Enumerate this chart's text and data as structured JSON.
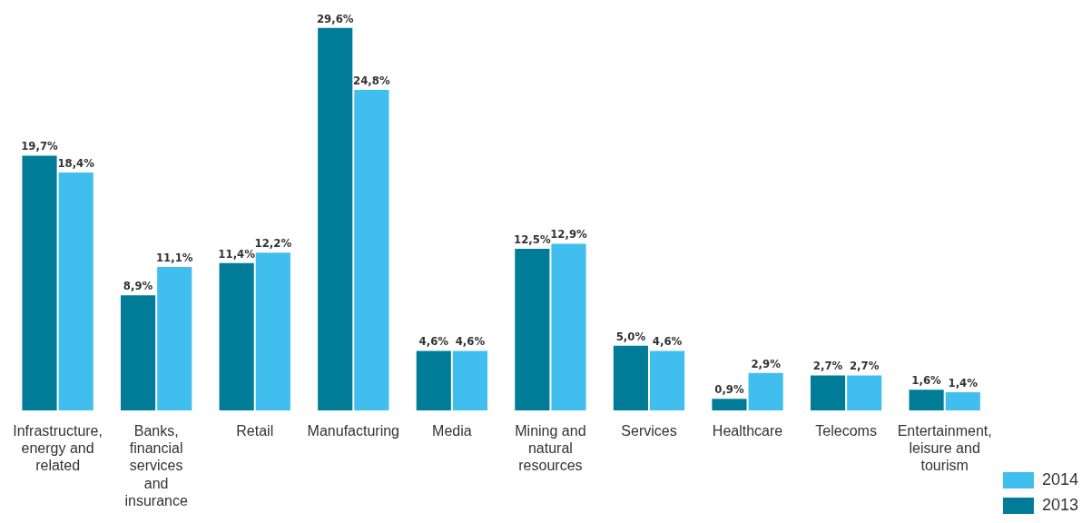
{
  "chart_data": {
    "type": "bar",
    "categories": [
      "Infrastructure, energy and related",
      "Banks, financial services and insurance",
      "Retail",
      "Manufacturing",
      "Media",
      "Mining and natural resources",
      "Services",
      "Healthcare",
      "Telecoms",
      "Entertainment, leisure and tourism"
    ],
    "series": [
      {
        "name": "2013",
        "color": "#007c99",
        "values": [
          19.7,
          8.9,
          11.4,
          29.6,
          4.6,
          12.5,
          5.0,
          0.9,
          2.7,
          1.6
        ],
        "value_labels": [
          "19,7%",
          "8,9%",
          "11,4%",
          "29,6%",
          "4,6%",
          "12,5%",
          "5,0%",
          "0,9%",
          "2,7%",
          "1,6%"
        ]
      },
      {
        "name": "2014",
        "color": "#40bfee",
        "values": [
          18.4,
          11.1,
          12.2,
          24.8,
          4.6,
          12.9,
          4.6,
          2.9,
          2.7,
          1.4
        ],
        "value_labels": [
          "18,4%",
          "11,1%",
          "12,2%",
          "24,8%",
          "4,6%",
          "12,9%",
          "4,6%",
          "2,9%",
          "2,7%",
          "1,4%"
        ]
      }
    ],
    "legend": "bottom right",
    "grid": false,
    "tick_labels": "x"
  }
}
